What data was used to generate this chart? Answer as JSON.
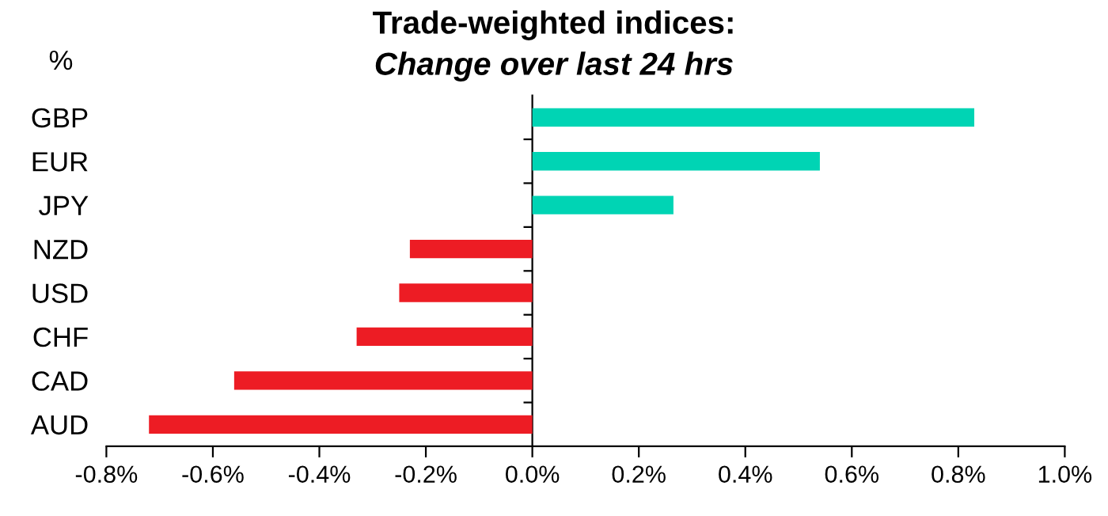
{
  "chart_data": {
    "type": "bar",
    "orientation": "horizontal",
    "title": "Trade-weighted indices:",
    "subtitle": "Change over last 24 hrs",
    "ylabel": "%",
    "categories": [
      "GBP",
      "EUR",
      "JPY",
      "NZD",
      "USD",
      "CHF",
      "CAD",
      "AUD"
    ],
    "values": [
      0.83,
      0.54,
      0.265,
      -0.23,
      -0.25,
      -0.33,
      -0.56,
      -0.72
    ],
    "colors": [
      "#00d4b4",
      "#00d4b4",
      "#00d4b4",
      "#ed1c24",
      "#ed1c24",
      "#ed1c24",
      "#ed1c24",
      "#ed1c24"
    ],
    "xlim": [
      -0.8,
      1.0
    ],
    "xticks": [
      {
        "value": -0.8,
        "label": "-0.8%"
      },
      {
        "value": -0.6,
        "label": "-0.6%"
      },
      {
        "value": -0.4,
        "label": "-0.4%"
      },
      {
        "value": -0.2,
        "label": "-0.2%"
      },
      {
        "value": 0,
        "label": "0.0%"
      },
      {
        "value": 0.2,
        "label": "0.2%"
      },
      {
        "value": 0.4,
        "label": "0.4%"
      },
      {
        "value": 0.6,
        "label": "0.6%"
      },
      {
        "value": 0.8,
        "label": "0.8%"
      },
      {
        "value": 1.0,
        "label": "1.0%"
      }
    ],
    "legend": false
  }
}
